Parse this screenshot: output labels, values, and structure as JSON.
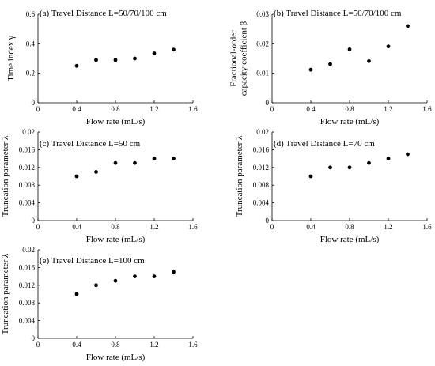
{
  "chart_data": [
    {
      "type": "scatter",
      "title": "(a) Travel Distance L=50/70/100 cm",
      "xlabel": "Flow rate (mL/s)",
      "ylabel": [
        "Time index γ"
      ],
      "xlim": [
        0,
        1.6
      ],
      "ylim": [
        0,
        0.6
      ],
      "xticks": [
        "0",
        "0.4",
        "0.8",
        "1.2",
        "1.6"
      ],
      "yticks": [
        "0",
        "0.2",
        "0.4",
        "0.6"
      ],
      "grid": false,
      "x": [
        0.4,
        0.6,
        0.8,
        1.0,
        1.2,
        1.4
      ],
      "y": [
        0.25,
        0.29,
        0.29,
        0.3,
        0.335,
        0.36
      ],
      "marker_color": "#000000"
    },
    {
      "type": "scatter",
      "title": "(b) Travel Distance L=50/70/100 cm",
      "xlabel": "Flow rate (mL/s)",
      "ylabel": [
        "Fractional-order",
        "capacity coefficient β"
      ],
      "xlim": [
        0,
        1.6
      ],
      "ylim": [
        0,
        0.03
      ],
      "xticks": [
        "0",
        "0.4",
        "0.8",
        "1.2",
        "1.6"
      ],
      "yticks": [
        "0",
        "0.01",
        "0.02",
        "0.03"
      ],
      "grid": false,
      "x": [
        0.4,
        0.6,
        0.8,
        1.0,
        1.2,
        1.4
      ],
      "y": [
        0.0112,
        0.0131,
        0.0181,
        0.0141,
        0.0191,
        0.026
      ],
      "marker_color": "#000000"
    },
    {
      "type": "scatter",
      "title": "(c) Travel Distance L=50 cm",
      "xlabel": "Flow rate (mL/s)",
      "ylabel": [
        "Truncation parameter λ"
      ],
      "xlim": [
        0,
        1.6
      ],
      "ylim": [
        0,
        0.02
      ],
      "xticks": [
        "0",
        "0.4",
        "0.8",
        "1.2",
        "1.6"
      ],
      "yticks": [
        "0",
        "0.004",
        "0.008",
        "0.012",
        "0.016",
        "0.02"
      ],
      "grid": false,
      "x": [
        0.4,
        0.6,
        0.8,
        1.0,
        1.2,
        1.4
      ],
      "y": [
        0.01,
        0.011,
        0.013,
        0.013,
        0.014,
        0.014
      ],
      "marker_color": "#000000"
    },
    {
      "type": "scatter",
      "title": "(d) Travel Distance L=70 cm",
      "xlabel": "Flow rate (mL/s)",
      "ylabel": [
        "Truncation parameter λ"
      ],
      "xlim": [
        0,
        1.6
      ],
      "ylim": [
        0,
        0.02
      ],
      "xticks": [
        "0",
        "0.4",
        "0.8",
        "1.2",
        "1.6"
      ],
      "yticks": [
        "0",
        "0.004",
        "0.008",
        "0.012",
        "0.016",
        "0.02"
      ],
      "grid": false,
      "x": [
        0.4,
        0.6,
        0.8,
        1.0,
        1.2,
        1.4
      ],
      "y": [
        0.01,
        0.012,
        0.012,
        0.013,
        0.014,
        0.015
      ],
      "marker_color": "#000000"
    },
    {
      "type": "scatter",
      "title": "(e) Travel Distance L=100 cm",
      "xlabel": "Flow rate (mL/s)",
      "ylabel": [
        "Truncation parameter λ"
      ],
      "xlim": [
        0,
        1.6
      ],
      "ylim": [
        0,
        0.02
      ],
      "xticks": [
        "0",
        "0.4",
        "0.8",
        "1.2",
        "1.6"
      ],
      "yticks": [
        "0",
        "0.004",
        "0.008",
        "0.012",
        "0.016",
        "0.02"
      ],
      "grid": false,
      "x": [
        0.4,
        0.6,
        0.8,
        1.0,
        1.2,
        1.4
      ],
      "y": [
        0.01,
        0.012,
        0.013,
        0.014,
        0.014,
        0.015
      ],
      "marker_color": "#000000"
    }
  ]
}
